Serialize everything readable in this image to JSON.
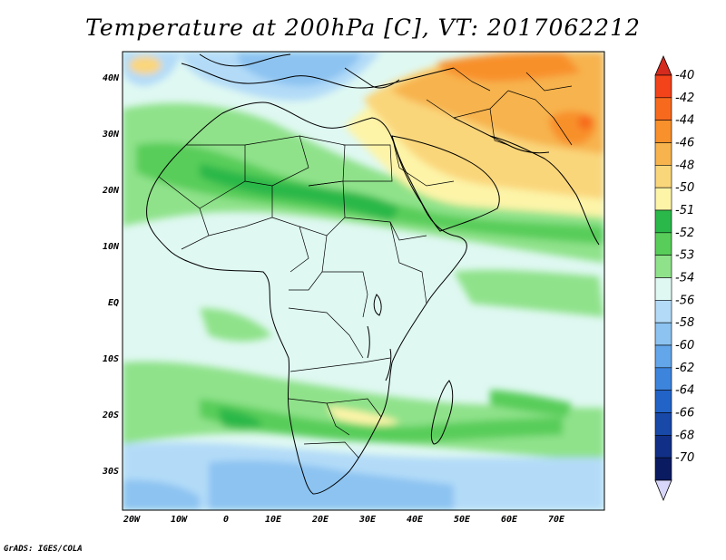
{
  "title": "Temperature at 200hPa [C], VT: 2017062212",
  "footer": "GrADS: IGES/COLA",
  "axes": {
    "lon_ticks": [
      "20W",
      "10W",
      "0",
      "10E",
      "20E",
      "30E",
      "40E",
      "50E",
      "60E",
      "70E"
    ],
    "lat_ticks": [
      "40N",
      "30N",
      "20N",
      "10N",
      "EQ",
      "10S",
      "20S",
      "30S"
    ]
  },
  "colorbar": {
    "labels": [
      "-40",
      "-42",
      "-44",
      "-46",
      "-48",
      "-50",
      "-51",
      "-52",
      "-53",
      "-54",
      "-56",
      "-58",
      "-60",
      "-62",
      "-64",
      "-66",
      "-68",
      "-70"
    ],
    "colors": {
      "max_arrow": "#d42b1e",
      "bins": [
        "#f2431b",
        "#f76a1e",
        "#f8902b",
        "#f7b34d",
        "#fad67a",
        "#fdf4a8",
        "#2bb84a",
        "#59cd5a",
        "#8fe28a",
        "#dff8f2",
        "#b3dbf8",
        "#8cc3f1",
        "#63a6ea",
        "#3d84dd",
        "#2263c7",
        "#1848a8",
        "#112f86",
        "#0b1b62"
      ],
      "min_arrow": "#d8d7fb"
    }
  },
  "map_colors": {
    "lightblue": "#dff8f2",
    "blue1": "#b3dbf8",
    "blue2": "#8cc3f1",
    "green_light": "#8fe28a",
    "green_mid": "#59cd5a",
    "green_dark": "#2bb84a",
    "yellow": "#fdf4a8",
    "yellow2": "#fad67a",
    "orange1": "#f7b34d",
    "orange2": "#f8902b",
    "red1": "#f76a1e"
  }
}
